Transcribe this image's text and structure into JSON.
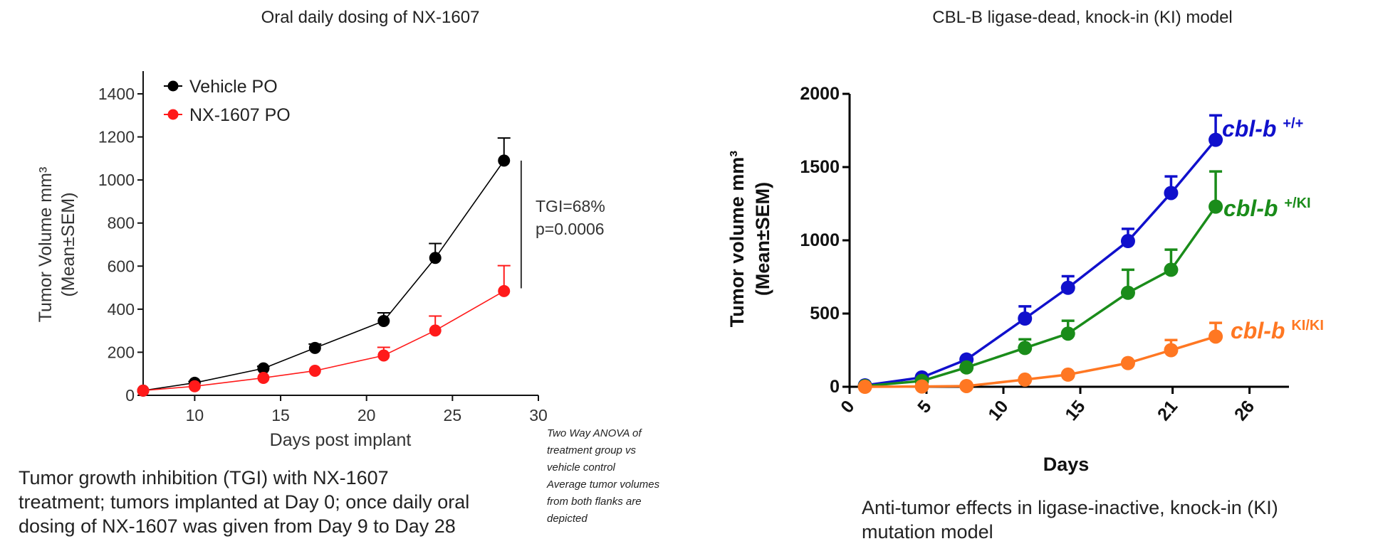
{
  "chart_data": [
    {
      "type": "line",
      "title": "Oral daily dosing of NX-1607",
      "xlabel": "Days post implant",
      "ylabel": "Tumor Volume mm³",
      "ylabel2": "(Mean±SEM)",
      "xlim": [
        7,
        30
      ],
      "ylim": [
        0,
        1400
      ],
      "xticks": [
        10,
        15,
        20,
        25,
        30
      ],
      "yticks": [
        0,
        200,
        400,
        600,
        800,
        1000,
        1200,
        1400
      ],
      "legend_position": "top-left",
      "x": [
        7,
        10,
        14,
        17,
        21,
        24,
        28
      ],
      "series": [
        {
          "name": "Vehicle PO",
          "color": "#000000",
          "values": [
            22,
            58,
            125,
            220,
            345,
            638,
            1090
          ],
          "sem": [
            0,
            6,
            10,
            18,
            38,
            67,
            105
          ]
        },
        {
          "name": "NX-1607 PO",
          "color": "#ff1a1a",
          "values": [
            22,
            42,
            81,
            114,
            185,
            301,
            484
          ],
          "sem": [
            0,
            0,
            0,
            0,
            38,
            67,
            118
          ]
        }
      ],
      "annotation": {
        "lines": [
          "TGI=68%",
          "p=0.0006"
        ],
        "bracket_x": 29,
        "bracket_range": [
          497,
          1090
        ]
      },
      "caption": [
        "Tumor growth inhibition (TGI) with NX-1607",
        "treatment; tumors implanted at Day 0; once daily oral",
        "dosing of NX-1607 was given from Day 9 to Day 28"
      ],
      "note": [
        "Two Way ANOVA of",
        "treatment group vs",
        "vehicle control",
        "Average tumor volumes",
        "from both flanks are",
        "depicted"
      ]
    },
    {
      "type": "line",
      "title": "CBL-B ligase-dead, knock-in (KI) model",
      "xlabel": "Days",
      "ylabel": "Tumor volume mm³",
      "ylabel2": "(Mean±SEM)",
      "xlim": [
        0,
        30
      ],
      "ylim": [
        0,
        2000
      ],
      "xticks": [
        0,
        5,
        10,
        15,
        21,
        26
      ],
      "yticks": [
        0,
        500,
        1000,
        1500,
        2000
      ],
      "legend_position": "right",
      "x": [
        1,
        4.7,
        7.6,
        11.4,
        14.2,
        18.1,
        20.9,
        23.8
      ],
      "series": [
        {
          "name": "cbl-b",
          "sup": "+/+",
          "color": "#1010cc",
          "values": [
            10,
            64,
            186,
            466,
            676,
            995,
            1323,
            1686
          ],
          "sem": [
            0,
            0,
            0,
            83,
            79,
            83,
            113,
            167
          ]
        },
        {
          "name": "cbl-b",
          "sup": "+/KI",
          "color": "#1a8c1a",
          "values": [
            5,
            40,
            132,
            265,
            363,
            642,
            799,
            1230
          ],
          "sem": [
            0,
            0,
            0,
            59,
            88,
            157,
            137,
            240
          ]
        },
        {
          "name": "cbl-b",
          "sup": "KI/KI",
          "color": "#ff7722",
          "values": [
            0,
            2,
            5,
            49,
            83,
            162,
            250,
            343
          ],
          "sem": [
            0,
            0,
            0,
            0,
            0,
            0,
            69,
            93
          ]
        }
      ],
      "caption": [
        "Anti-tumor effects in ligase-inactive, knock-in (KI)",
        "mutation model"
      ]
    }
  ]
}
